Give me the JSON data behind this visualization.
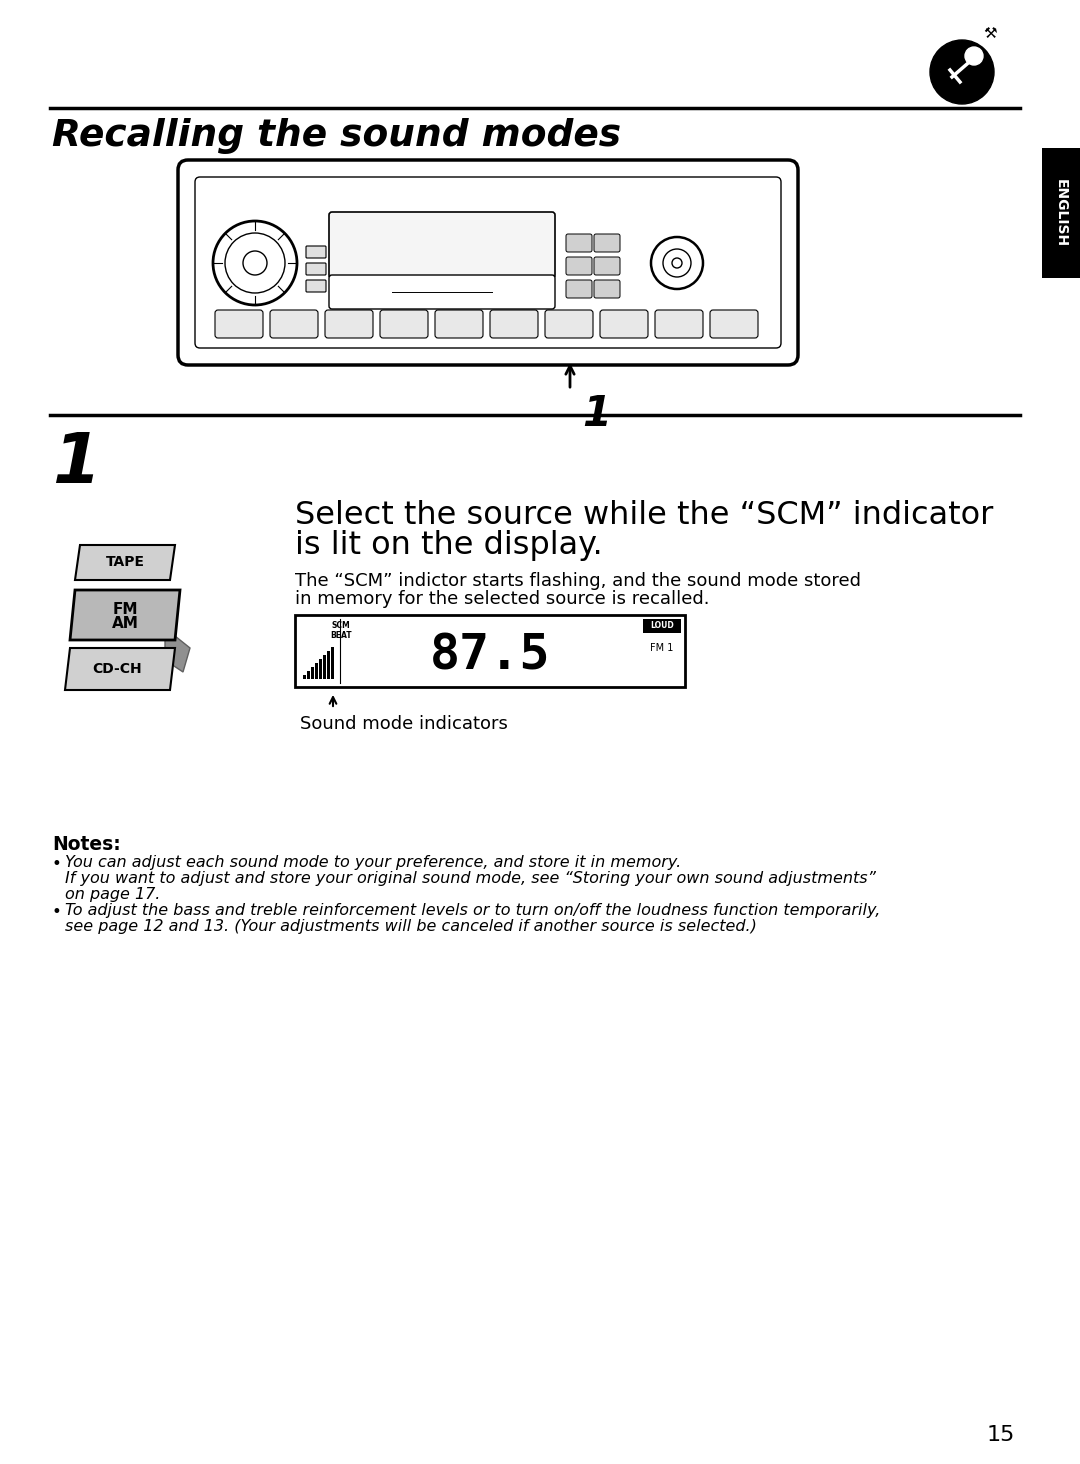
{
  "bg_color": "#ffffff",
  "title": "Recalling the sound modes",
  "step_number": "1",
  "step_heading_line1": "Select the source while the “SCM” indicator",
  "step_heading_line2": "is lit on the display.",
  "step_body_line1": "The “SCM” indictor starts flashing, and the sound mode stored",
  "step_body_line2": "in memory for the selected source is recalled.",
  "display_label": "Sound mode indicators",
  "notes_header": "Notes:",
  "note1_bullet": "•",
  "note1_line1": "You can adjust each sound mode to your preference, and store it in memory.",
  "note1_line2": "If you want to adjust and store your original sound mode, see “Storing your own sound adjustments”",
  "note1_line3": "on page 17.",
  "note2_bullet": "•",
  "note2_line1": "To adjust the bass and treble reinforcement levels or to turn on/off the loudness function temporarily,",
  "note2_line2": "see page 12 and 13. (Your adjustments will be canceled if another source is selected.)",
  "page_number": "15",
  "english_tab_text": "ENGLISH",
  "english_tab_color": "#000000",
  "english_tab_text_color": "#ffffff",
  "line_color": "#000000",
  "text_color": "#000000"
}
